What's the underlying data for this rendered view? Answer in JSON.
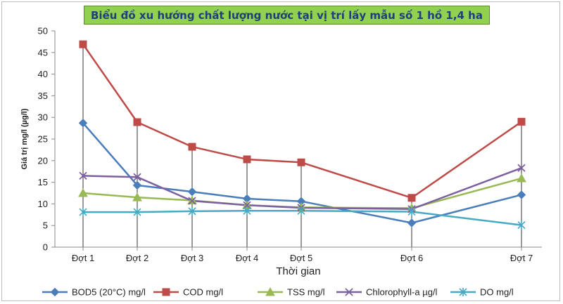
{
  "chart_data": {
    "type": "line",
    "title": "Biểu đồ xu hướng chất lượng nước tại vị trí lấy mẫu số 1 hồ 1,4 ha",
    "xlabel": "Thời gian",
    "ylabel": "Giá trị mg/l (µg/l)",
    "ylim": [
      0,
      50
    ],
    "yticks": [
      0,
      5,
      10,
      15,
      20,
      25,
      30,
      35,
      40,
      45,
      50
    ],
    "categories": [
      "Đợt 1",
      "Đợt 2",
      "Đợt 3",
      "Đợt 4",
      "Đợt 5",
      "Đợt 6",
      "Đợt 7"
    ],
    "grid": "vertical drop lines at each category",
    "legend_position": "bottom",
    "series": [
      {
        "name": "BOD5 (20°C) mg/l",
        "color": "#4a7ebb",
        "marker": "diamond",
        "values": [
          28.7,
          14.3,
          12.8,
          11.2,
          10.6,
          5.6,
          12.1
        ]
      },
      {
        "name": "COD mg/l",
        "color": "#be4b48",
        "marker": "square",
        "values": [
          46.9,
          28.9,
          23.2,
          20.3,
          19.6,
          11.4,
          29.0
        ]
      },
      {
        "name": "TSS mg/l",
        "color": "#98b954",
        "marker": "triangle",
        "values": [
          12.5,
          11.5,
          10.8,
          9.7,
          9.2,
          9.0,
          15.9
        ]
      },
      {
        "name": "Chlorophyll-a µg/l",
        "color": "#7d60a0",
        "marker": "x",
        "values": [
          16.5,
          16.2,
          10.7,
          9.7,
          9.1,
          8.8,
          18.3
        ]
      },
      {
        "name": "DO mg/l",
        "color": "#46aac5",
        "marker": "star",
        "values": [
          8.1,
          8.1,
          8.3,
          8.4,
          8.4,
          8.2,
          5.1
        ]
      }
    ]
  }
}
